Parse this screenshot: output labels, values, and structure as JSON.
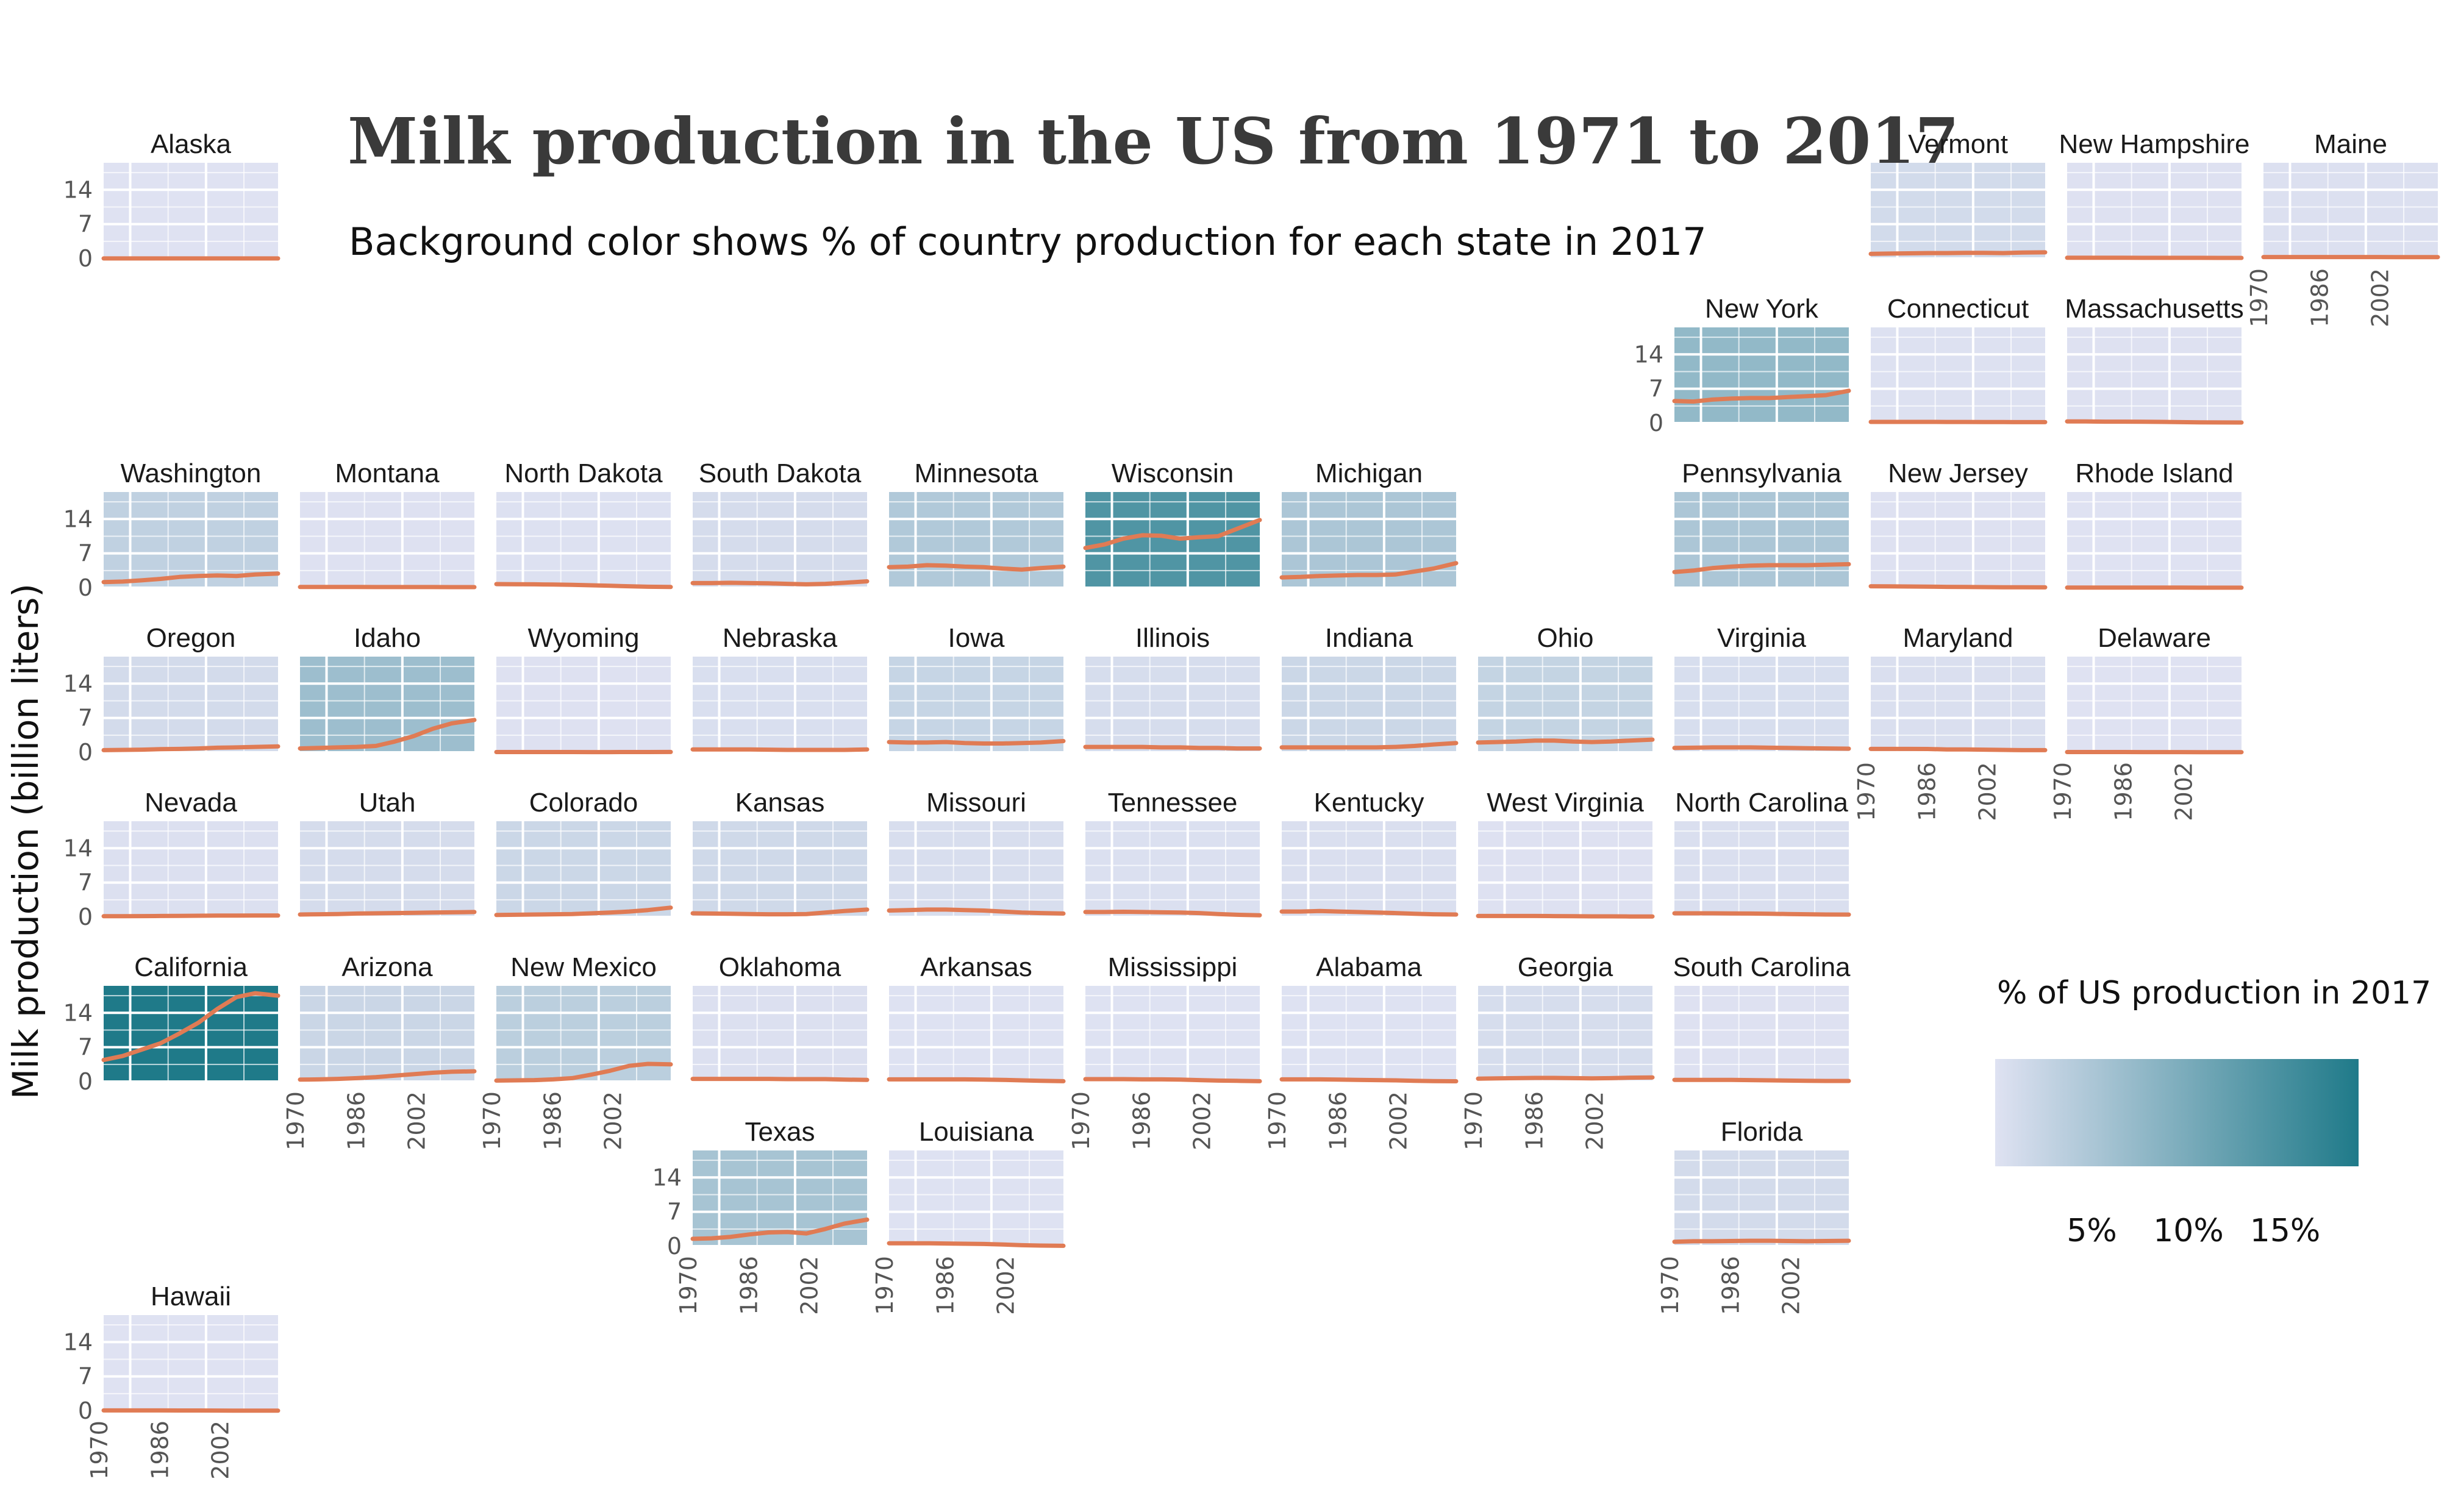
{
  "chart_data": {
    "type": "line",
    "title": "Milk production in the US from 1971 to 2017",
    "subtitle": "Background color shows % of country production for each state in 2017",
    "ylabel": "Milk production (billion liters)",
    "xlim": [
      1971,
      2017
    ],
    "ylim": [
      0,
      19.5
    ],
    "x_ticks": [
      "1970",
      "1986",
      "2002"
    ],
    "y_ticks": [
      "0",
      "7",
      "14"
    ],
    "line_color": "#e07b54",
    "grid": true,
    "legend": {
      "title": "% of US production in 2017",
      "ticks": [
        "5%",
        "10%",
        "15%"
      ],
      "tick_values": [
        5,
        10,
        15
      ],
      "range": [
        0,
        18.8
      ],
      "color_low": "#dfe2f2",
      "color_high": "#1f7a89",
      "placement": "right"
    },
    "x": [
      1971,
      1976,
      1981,
      1986,
      1991,
      1996,
      2001,
      2006,
      2011,
      2017
    ],
    "states": [
      {
        "name": "Alaska",
        "share": 0.0,
        "values": [
          0.01,
          0.01,
          0.01,
          0.01,
          0.01,
          0.01,
          0.01,
          0.01,
          0.01,
          0.01
        ]
      },
      {
        "name": "Vermont",
        "share": 1.3,
        "values": [
          0.95,
          1.0,
          1.05,
          1.1,
          1.1,
          1.15,
          1.15,
          1.1,
          1.2,
          1.25
        ]
      },
      {
        "name": "New Hampshire",
        "share": 0.1,
        "values": [
          0.15,
          0.15,
          0.15,
          0.15,
          0.14,
          0.14,
          0.14,
          0.14,
          0.13,
          0.12
        ]
      },
      {
        "name": "Maine",
        "share": 0.3,
        "values": [
          0.3,
          0.3,
          0.3,
          0.3,
          0.3,
          0.3,
          0.3,
          0.28,
          0.28,
          0.28
        ]
      },
      {
        "name": "New York",
        "share": 7.5,
        "values": [
          4.5,
          4.4,
          4.8,
          5.0,
          5.1,
          5.1,
          5.3,
          5.5,
          5.7,
          6.6
        ]
      },
      {
        "name": "Connecticut",
        "share": 0.2,
        "values": [
          0.25,
          0.25,
          0.25,
          0.25,
          0.24,
          0.23,
          0.22,
          0.21,
          0.2,
          0.2
        ]
      },
      {
        "name": "Massachusetts",
        "share": 0.1,
        "values": [
          0.35,
          0.33,
          0.3,
          0.3,
          0.28,
          0.25,
          0.2,
          0.16,
          0.14,
          0.12
        ]
      },
      {
        "name": "Washington",
        "share": 3.0,
        "values": [
          1.15,
          1.25,
          1.5,
          1.8,
          2.2,
          2.4,
          2.5,
          2.4,
          2.7,
          2.9
        ]
      },
      {
        "name": "Montana",
        "share": 0.1,
        "values": [
          0.15,
          0.15,
          0.15,
          0.15,
          0.14,
          0.14,
          0.14,
          0.14,
          0.13,
          0.13
        ]
      },
      {
        "name": "North Dakota",
        "share": 0.2,
        "values": [
          0.75,
          0.72,
          0.7,
          0.65,
          0.6,
          0.5,
          0.4,
          0.3,
          0.2,
          0.15
        ]
      },
      {
        "name": "South Dakota",
        "share": 1.0,
        "values": [
          0.95,
          0.95,
          1.0,
          0.95,
          0.9,
          0.8,
          0.7,
          0.8,
          1.0,
          1.3
        ]
      },
      {
        "name": "Minnesota",
        "share": 4.5,
        "values": [
          4.2,
          4.3,
          4.6,
          4.5,
          4.3,
          4.2,
          3.9,
          3.7,
          4.0,
          4.3
        ]
      },
      {
        "name": "Wisconsin",
        "share": 14.0,
        "values": [
          8.1,
          8.8,
          10.0,
          10.7,
          10.6,
          10.0,
          10.3,
          10.5,
          12.0,
          13.8
        ]
      },
      {
        "name": "Michigan",
        "share": 5.0,
        "values": [
          2.1,
          2.2,
          2.4,
          2.5,
          2.6,
          2.6,
          2.7,
          3.3,
          3.9,
          5.0
        ]
      },
      {
        "name": "Pennsylvania",
        "share": 5.0,
        "values": [
          3.2,
          3.5,
          4.0,
          4.3,
          4.5,
          4.6,
          4.6,
          4.6,
          4.7,
          4.8
        ]
      },
      {
        "name": "New Jersey",
        "share": 0.1,
        "values": [
          0.3,
          0.28,
          0.25,
          0.22,
          0.18,
          0.15,
          0.12,
          0.1,
          0.09,
          0.07
        ]
      },
      {
        "name": "Rhode Island",
        "share": 0.0,
        "values": [
          0.02,
          0.02,
          0.02,
          0.02,
          0.02,
          0.02,
          0.02,
          0.01,
          0.01,
          0.01
        ]
      },
      {
        "name": "Oregon",
        "share": 1.2,
        "values": [
          0.45,
          0.5,
          0.55,
          0.65,
          0.7,
          0.8,
          0.95,
          1.0,
          1.1,
          1.2
        ]
      },
      {
        "name": "Idaho",
        "share": 6.5,
        "values": [
          0.8,
          0.9,
          1.0,
          1.1,
          1.3,
          2.2,
          3.3,
          4.8,
          5.9,
          6.6
        ]
      },
      {
        "name": "Wyoming",
        "share": 0.1,
        "values": [
          0.06,
          0.06,
          0.06,
          0.06,
          0.06,
          0.05,
          0.05,
          0.06,
          0.06,
          0.07
        ]
      },
      {
        "name": "Nebraska",
        "share": 0.6,
        "values": [
          0.6,
          0.6,
          0.6,
          0.6,
          0.55,
          0.5,
          0.5,
          0.5,
          0.5,
          0.6
        ]
      },
      {
        "name": "Iowa",
        "share": 2.4,
        "values": [
          2.1,
          2.0,
          2.0,
          2.1,
          1.9,
          1.8,
          1.8,
          1.9,
          2.0,
          2.3
        ]
      },
      {
        "name": "Illinois",
        "share": 0.9,
        "values": [
          1.1,
          1.1,
          1.1,
          1.1,
          1.0,
          1.0,
          0.9,
          0.9,
          0.8,
          0.8
        ]
      },
      {
        "name": "Indiana",
        "share": 2.0,
        "values": [
          1.0,
          1.0,
          1.0,
          1.0,
          1.0,
          1.0,
          1.1,
          1.3,
          1.6,
          1.9
        ]
      },
      {
        "name": "Ohio",
        "share": 2.6,
        "values": [
          2.0,
          2.1,
          2.2,
          2.4,
          2.4,
          2.2,
          2.1,
          2.2,
          2.4,
          2.6
        ]
      },
      {
        "name": "Virginia",
        "share": 0.8,
        "values": [
          0.9,
          0.95,
          1.0,
          1.0,
          1.0,
          0.95,
          0.9,
          0.85,
          0.8,
          0.75
        ]
      },
      {
        "name": "Maryland",
        "share": 0.5,
        "values": [
          0.7,
          0.7,
          0.7,
          0.68,
          0.6,
          0.6,
          0.55,
          0.5,
          0.45,
          0.45
        ]
      },
      {
        "name": "Delaware",
        "share": 0.0,
        "values": [
          0.06,
          0.06,
          0.06,
          0.06,
          0.05,
          0.05,
          0.05,
          0.04,
          0.04,
          0.04
        ]
      },
      {
        "name": "Nevada",
        "share": 0.3,
        "values": [
          0.15,
          0.15,
          0.17,
          0.2,
          0.22,
          0.25,
          0.28,
          0.28,
          0.3,
          0.3
        ]
      },
      {
        "name": "Utah",
        "share": 1.0,
        "values": [
          0.5,
          0.55,
          0.6,
          0.7,
          0.75,
          0.8,
          0.85,
          0.9,
          0.95,
          1.0
        ]
      },
      {
        "name": "Colorado",
        "share": 2.0,
        "values": [
          0.4,
          0.45,
          0.5,
          0.55,
          0.6,
          0.75,
          0.9,
          1.1,
          1.4,
          1.9
        ]
      },
      {
        "name": "Kansas",
        "share": 1.6,
        "values": [
          0.75,
          0.7,
          0.65,
          0.6,
          0.55,
          0.55,
          0.6,
          0.9,
          1.2,
          1.5
        ]
      },
      {
        "name": "Missouri",
        "share": 0.7,
        "values": [
          1.3,
          1.4,
          1.5,
          1.5,
          1.4,
          1.3,
          1.1,
          0.9,
          0.8,
          0.7
        ]
      },
      {
        "name": "Tennessee",
        "share": 0.4,
        "values": [
          1.0,
          1.0,
          1.05,
          1.0,
          0.95,
          0.9,
          0.8,
          0.6,
          0.45,
          0.35
        ]
      },
      {
        "name": "Kentucky",
        "share": 0.5,
        "values": [
          1.1,
          1.1,
          1.2,
          1.1,
          1.0,
          0.9,
          0.8,
          0.65,
          0.55,
          0.5
        ]
      },
      {
        "name": "West Virginia",
        "share": 0.1,
        "values": [
          0.2,
          0.2,
          0.2,
          0.2,
          0.17,
          0.15,
          0.13,
          0.12,
          0.1,
          0.1
        ]
      },
      {
        "name": "North Carolina",
        "share": 0.5,
        "values": [
          0.75,
          0.75,
          0.75,
          0.72,
          0.7,
          0.65,
          0.6,
          0.55,
          0.5,
          0.48
        ]
      },
      {
        "name": "California",
        "share": 18.8,
        "values": [
          4.4,
          5.2,
          6.5,
          7.8,
          9.8,
          12.0,
          14.8,
          17.2,
          18.0,
          17.5
        ]
      },
      {
        "name": "Arizona",
        "share": 2.1,
        "values": [
          0.4,
          0.45,
          0.55,
          0.7,
          0.9,
          1.2,
          1.5,
          1.8,
          2.0,
          2.1
        ]
      },
      {
        "name": "New Mexico",
        "share": 3.5,
        "values": [
          0.2,
          0.25,
          0.3,
          0.45,
          0.7,
          1.4,
          2.2,
          3.2,
          3.6,
          3.5
        ]
      },
      {
        "name": "Oklahoma",
        "share": 0.3,
        "values": [
          0.55,
          0.55,
          0.55,
          0.55,
          0.55,
          0.5,
          0.5,
          0.5,
          0.4,
          0.35
        ]
      },
      {
        "name": "Arkansas",
        "share": 0.05,
        "values": [
          0.45,
          0.45,
          0.45,
          0.45,
          0.45,
          0.4,
          0.35,
          0.25,
          0.15,
          0.07
        ]
      },
      {
        "name": "Mississippi",
        "share": 0.05,
        "values": [
          0.5,
          0.5,
          0.5,
          0.45,
          0.45,
          0.4,
          0.3,
          0.2,
          0.15,
          0.08
        ]
      },
      {
        "name": "Alabama",
        "share": 0.05,
        "values": [
          0.45,
          0.45,
          0.45,
          0.4,
          0.35,
          0.3,
          0.25,
          0.15,
          0.1,
          0.06
        ]
      },
      {
        "name": "Georgia",
        "share": 0.9,
        "values": [
          0.6,
          0.65,
          0.7,
          0.75,
          0.75,
          0.7,
          0.65,
          0.7,
          0.8,
          0.85
        ]
      },
      {
        "name": "South Carolina",
        "share": 0.1,
        "values": [
          0.35,
          0.35,
          0.35,
          0.33,
          0.3,
          0.25,
          0.2,
          0.15,
          0.13,
          0.12
        ]
      },
      {
        "name": "Texas",
        "share": 5.5,
        "values": [
          1.5,
          1.6,
          1.9,
          2.4,
          2.8,
          2.9,
          2.6,
          3.5,
          4.6,
          5.4
        ]
      },
      {
        "name": "Louisiana",
        "share": 0.05,
        "values": [
          0.6,
          0.6,
          0.6,
          0.55,
          0.5,
          0.45,
          0.35,
          0.2,
          0.12,
          0.07
        ]
      },
      {
        "name": "Florida",
        "share": 1.2,
        "values": [
          0.9,
          1.0,
          1.0,
          1.05,
          1.1,
          1.1,
          1.05,
          1.0,
          1.05,
          1.1
        ]
      },
      {
        "name": "Hawaii",
        "share": 0.0,
        "values": [
          0.07,
          0.07,
          0.07,
          0.07,
          0.06,
          0.06,
          0.05,
          0.03,
          0.02,
          0.02
        ]
      }
    ]
  }
}
